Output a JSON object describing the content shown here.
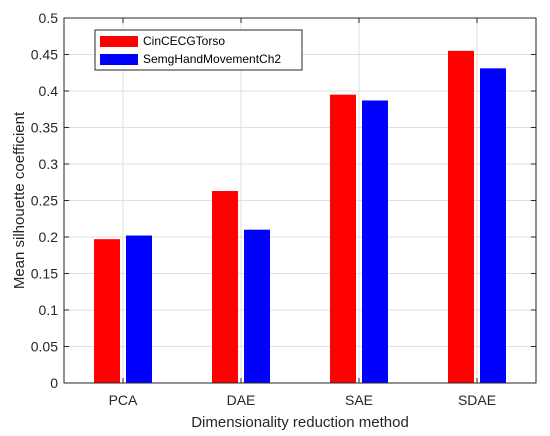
{
  "chart_data": {
    "type": "bar",
    "title": "",
    "xlabel": "Dimensionality reduction method",
    "ylabel": "Mean silhouette coefficient",
    "categories": [
      "PCA",
      "DAE",
      "SAE",
      "SDAE"
    ],
    "series": [
      {
        "name": "CinCECGTorso",
        "color": "#ff0000",
        "values": [
          0.197,
          0.263,
          0.395,
          0.455
        ]
      },
      {
        "name": "SemgHandMovementCh2",
        "color": "#0000ff",
        "values": [
          0.202,
          0.21,
          0.387,
          0.431
        ]
      }
    ],
    "ylim": [
      0,
      0.5
    ],
    "yticks": [
      "0",
      "0.05",
      "0.1",
      "0.15",
      "0.2",
      "0.25",
      "0.3",
      "0.35",
      "0.4",
      "0.45",
      "0.5"
    ],
    "grid": true,
    "legend_position": "top-left"
  }
}
